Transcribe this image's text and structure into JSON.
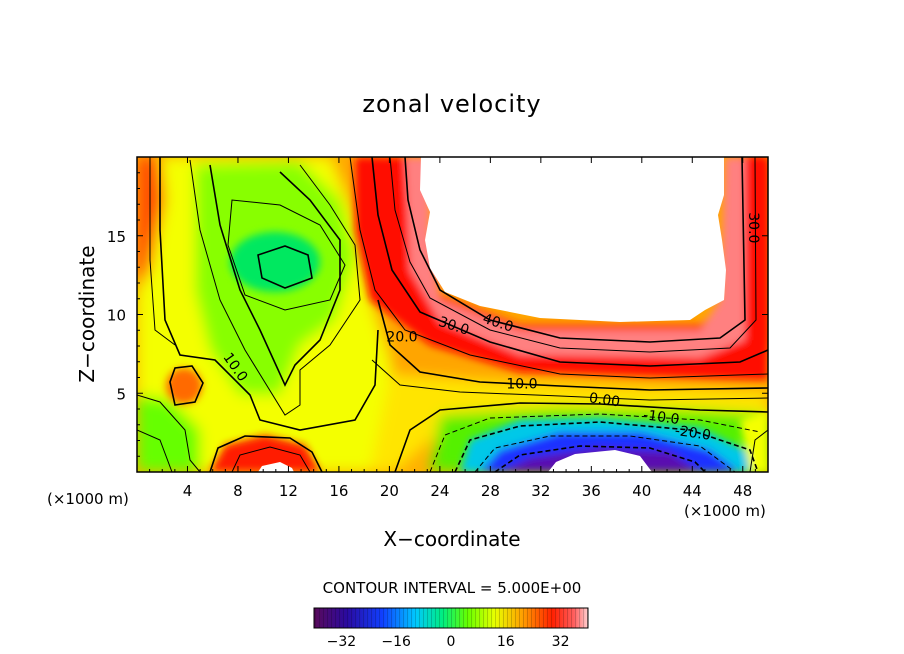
{
  "chart_data": {
    "type": "heatmap",
    "title": "zonal velocity",
    "xlabel": "X−coordinate",
    "ylabel": "Z−coordinate",
    "x_unit_label": "(×1000 m)",
    "z_unit_label": "(×1000 m)",
    "xlim": [
      0,
      50
    ],
    "ylim": [
      0,
      20
    ],
    "x_ticks": [
      4,
      8,
      12,
      16,
      20,
      24,
      28,
      32,
      36,
      40,
      44,
      48
    ],
    "x_tick_labels": [
      "4",
      "8",
      "12",
      "16",
      "20",
      "24",
      "28",
      "32",
      "36",
      "40",
      "44",
      "48"
    ],
    "y_ticks": [
      5,
      10,
      15
    ],
    "y_tick_labels": [
      "5",
      "10",
      "15"
    ],
    "contour_interval_text": "CONTOUR INTERVAL = 5.000E+00",
    "contour_labels": [
      {
        "text": "10.0",
        "x": 7.5,
        "z": 6.5
      },
      {
        "text": "20.0",
        "x": 21.0,
        "z": 8.3
      },
      {
        "text": "30.0",
        "x": 25.0,
        "z": 9.0
      },
      {
        "text": "40.0",
        "x": 28.5,
        "z": 9.2
      },
      {
        "text": "10.0",
        "x": 30.5,
        "z": 5.3
      },
      {
        "text": "0.00",
        "x": 37.0,
        "z": 4.3
      },
      {
        "text": "-10.0",
        "x": 41.5,
        "z": 3.2
      },
      {
        "text": "-20.0",
        "x": 44.0,
        "z": 2.2
      },
      {
        "text": "30.0",
        "x": 48.5,
        "z": 15.5
      }
    ],
    "colorbar": {
      "min": -40,
      "max": 40,
      "ticks": [
        -32,
        -16,
        0,
        16,
        32
      ],
      "tick_labels": [
        "−32",
        "−16",
        "0",
        "16",
        "32"
      ]
    },
    "features": [
      {
        "kind": "jet_core",
        "description_value": "above 40",
        "x_range": [
          22,
          47
        ],
        "z_range": [
          9,
          20
        ]
      },
      {
        "kind": "negative_core",
        "description_value": "below -30",
        "x_range": [
          32,
          42
        ],
        "z_range": [
          0,
          2
        ]
      },
      {
        "kind": "local_max",
        "x_range": [
          10,
          14
        ],
        "z_range": [
          0,
          1
        ]
      },
      {
        "kind": "local_min",
        "x_range": [
          9,
          14
        ],
        "z_range": [
          12,
          14
        ]
      }
    ]
  }
}
